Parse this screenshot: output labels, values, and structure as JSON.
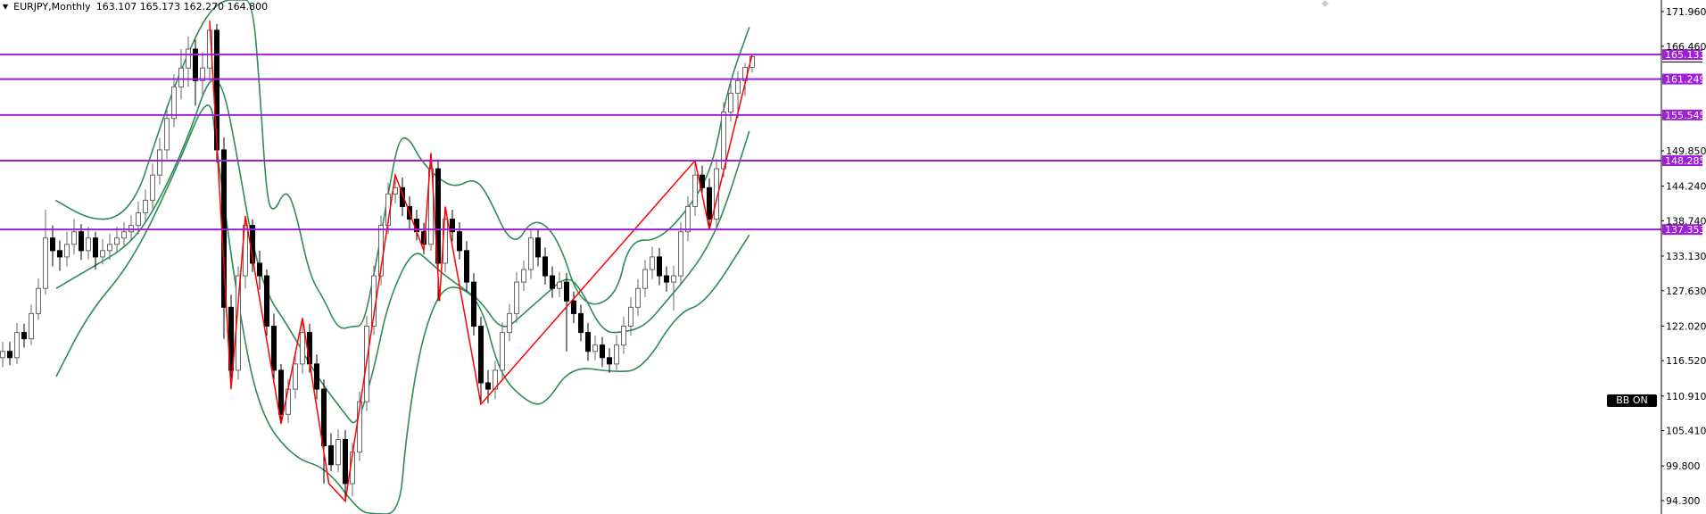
{
  "header": {
    "symbol": "EURJPY,Monthly",
    "ohlc_text": "163.107 165.173 162.270 164.800",
    "menu_icon": "triangle-down-icon"
  },
  "bb_button": {
    "label": "BB ON"
  },
  "colors": {
    "bull_body": "#ffffff",
    "bear_body": "#000000",
    "candle_outline": "#555555",
    "bands": "#2e8b57",
    "zigzag": "#ff0000",
    "levels": "#9d1fd6",
    "axis": "#000000"
  },
  "chart_data": {
    "type": "candlestick",
    "title": "EURJPY,Monthly",
    "ylim": [
      93.5,
      173.8
    ],
    "yticks": [
      "171.960",
      "166.460",
      "149.850",
      "144.240",
      "138.740",
      "133.130",
      "127.630",
      "122.020",
      "116.520",
      "110.910",
      "105.410",
      "99.800",
      "94.300"
    ],
    "ytick_values": [
      171.96,
      166.46,
      149.85,
      144.24,
      138.74,
      133.13,
      127.63,
      122.02,
      116.52,
      110.91,
      105.41,
      99.8,
      94.3
    ],
    "ohlc": [
      [
        117,
        119.5,
        115.5,
        118
      ],
      [
        118,
        119.5,
        115.8,
        117
      ],
      [
        117,
        122.5,
        116,
        121
      ],
      [
        121,
        122.4,
        118.6,
        120
      ],
      [
        120,
        125.4,
        119,
        124
      ],
      [
        124,
        129.6,
        123,
        128
      ],
      [
        128,
        140.5,
        127,
        136
      ],
      [
        136,
        138,
        131.5,
        134
      ],
      [
        134,
        135.6,
        130.8,
        133
      ],
      [
        133,
        137,
        131.5,
        135
      ],
      [
        135,
        139,
        133.4,
        137
      ],
      [
        137,
        138.2,
        132.5,
        134
      ],
      [
        134,
        137.8,
        132.6,
        136
      ],
      [
        136,
        137,
        131,
        133
      ],
      [
        133,
        135.8,
        131.8,
        134
      ],
      [
        134,
        136.7,
        132.5,
        135
      ],
      [
        135,
        137.8,
        133.6,
        136
      ],
      [
        136,
        138.5,
        134.7,
        137
      ],
      [
        137,
        139.6,
        135.5,
        138
      ],
      [
        138,
        141.8,
        136.6,
        140
      ],
      [
        140,
        143.7,
        138.5,
        142
      ],
      [
        142,
        147.8,
        140.7,
        146
      ],
      [
        146,
        151.9,
        144.5,
        150
      ],
      [
        150,
        157,
        148.5,
        155
      ],
      [
        155,
        162,
        153.6,
        160
      ],
      [
        160,
        166,
        158,
        163
      ],
      [
        163,
        168,
        160,
        166
      ],
      [
        166,
        167.5,
        157,
        161
      ],
      [
        161,
        165.5,
        158.6,
        163
      ],
      [
        163,
        170.5,
        161,
        169
      ],
      [
        169,
        170,
        148,
        150
      ],
      [
        150,
        152,
        120,
        125
      ],
      [
        125,
        127,
        112,
        115
      ],
      [
        115,
        131.5,
        113.5,
        130
      ],
      [
        130,
        139.5,
        128,
        138
      ],
      [
        138,
        139,
        130.6,
        132
      ],
      [
        132,
        134,
        127.8,
        130
      ],
      [
        130,
        131,
        120.5,
        122
      ],
      [
        122,
        124,
        113.5,
        115
      ],
      [
        115,
        116,
        106.5,
        108
      ],
      [
        108,
        113.6,
        106.6,
        112
      ],
      [
        112,
        117.6,
        110.5,
        116
      ],
      [
        116,
        123.3,
        114.5,
        121
      ],
      [
        121,
        122.4,
        114.6,
        116
      ],
      [
        116,
        117.5,
        110.4,
        112
      ],
      [
        112,
        113.5,
        97,
        103
      ],
      [
        103,
        105,
        99,
        100
      ],
      [
        100,
        105.6,
        98.8,
        104
      ],
      [
        104,
        105.5,
        94.2,
        97
      ],
      [
        97,
        103.5,
        95,
        102
      ],
      [
        102,
        111.6,
        100.6,
        110
      ],
      [
        110,
        123.6,
        108.5,
        122
      ],
      [
        122,
        131.6,
        120.6,
        130
      ],
      [
        130,
        139.6,
        128.5,
        138
      ],
      [
        138,
        144.8,
        136.6,
        143
      ],
      [
        143,
        146,
        141.5,
        144
      ],
      [
        144,
        145.6,
        139.5,
        141
      ],
      [
        141,
        142.6,
        137.5,
        139
      ],
      [
        139,
        140.5,
        135.6,
        137
      ],
      [
        137,
        138.4,
        133.4,
        135
      ],
      [
        135,
        149.5,
        134,
        147
      ],
      [
        147,
        148.5,
        126,
        132
      ],
      [
        132,
        141,
        130.5,
        139
      ],
      [
        139,
        140.5,
        135.5,
        137
      ],
      [
        137,
        138.5,
        132.6,
        134
      ],
      [
        134,
        135.5,
        127.5,
        129
      ],
      [
        129,
        130.4,
        120.5,
        122
      ],
      [
        122,
        123.5,
        109.6,
        113
      ],
      [
        113,
        115,
        109.8,
        112
      ],
      [
        112,
        116.5,
        110.4,
        115
      ],
      [
        115,
        122.6,
        113.6,
        121
      ],
      [
        121,
        125.5,
        119.6,
        124
      ],
      [
        124,
        130.6,
        122.5,
        129
      ],
      [
        129,
        132.4,
        127.6,
        131
      ],
      [
        131,
        137.5,
        129.5,
        136
      ],
      [
        136,
        137.4,
        131.5,
        133
      ],
      [
        133,
        134.5,
        128.6,
        130
      ],
      [
        130,
        131.5,
        126.5,
        128
      ],
      [
        128,
        130.6,
        126.6,
        129
      ],
      [
        129,
        130.4,
        118,
        126
      ],
      [
        126,
        127.5,
        122.5,
        124
      ],
      [
        124,
        125.4,
        119.6,
        121
      ],
      [
        121,
        122.5,
        116.5,
        118
      ],
      [
        118,
        120.5,
        116.6,
        119
      ],
      [
        119,
        120.3,
        115.5,
        117
      ],
      [
        117,
        118.5,
        114.6,
        116
      ],
      [
        116,
        120.6,
        115,
        119
      ],
      [
        119,
        123.5,
        117.6,
        122
      ],
      [
        122,
        126.6,
        120.5,
        125
      ],
      [
        125,
        129.5,
        123.6,
        128
      ],
      [
        128,
        132.5,
        126.6,
        131
      ],
      [
        131,
        134.6,
        129.5,
        133
      ],
      [
        133,
        134.4,
        128.5,
        130
      ],
      [
        130,
        131.5,
        127.5,
        129
      ],
      [
        129,
        131.6,
        124.5,
        130
      ],
      [
        130,
        138.5,
        128.6,
        137
      ],
      [
        137,
        142.6,
        135.5,
        141
      ],
      [
        141,
        148.3,
        139.5,
        146
      ],
      [
        146,
        147.5,
        142.5,
        144
      ],
      [
        144,
        145.5,
        137.4,
        139
      ],
      [
        139,
        148.6,
        137.6,
        147
      ],
      [
        147,
        157.6,
        145.6,
        156
      ],
      [
        156,
        160.5,
        154.5,
        159
      ],
      [
        159,
        162.5,
        155,
        161
      ],
      [
        161,
        163.8,
        158.6,
        163.107
      ],
      [
        163.107,
        165.173,
        162.27,
        164.8
      ]
    ],
    "bollinger_upper": [
      [
        7.4,
        142
      ],
      [
        12,
        139
      ],
      [
        16,
        139
      ],
      [
        19,
        143
      ],
      [
        21,
        150
      ],
      [
        24,
        160
      ],
      [
        27,
        168
      ],
      [
        29,
        172
      ],
      [
        31,
        176
      ],
      [
        33,
        180
      ],
      [
        35,
        175
      ],
      [
        36,
        160
      ],
      [
        37,
        142
      ],
      [
        38,
        140
      ],
      [
        39.6,
        143.8
      ],
      [
        40.9,
        141
      ],
      [
        43,
        130
      ],
      [
        45,
        126.3
      ],
      [
        47,
        121.4
      ],
      [
        49,
        122
      ],
      [
        50.5,
        122
      ],
      [
        52,
        130
      ],
      [
        54,
        143
      ],
      [
        55.5,
        152
      ],
      [
        57,
        151.8
      ],
      [
        58.4,
        148.6
      ],
      [
        60.9,
        145.5
      ],
      [
        63.4,
        144
      ],
      [
        66,
        145.5
      ],
      [
        67.8,
        143.3
      ],
      [
        71.5,
        134.1
      ],
      [
        74.4,
        139.5
      ],
      [
        77.8,
        136.2
      ],
      [
        81,
        124.9
      ],
      [
        85.9,
        126.3
      ],
      [
        87.8,
        135.8
      ],
      [
        92,
        135.5
      ],
      [
        97,
        142
      ],
      [
        99.6,
        148
      ],
      [
        101.5,
        159.6
      ],
      [
        104.6,
        169.5
      ]
    ],
    "bollinger_middle": [
      [
        7.5,
        128
      ],
      [
        12,
        131
      ],
      [
        18,
        135
      ],
      [
        22,
        142
      ],
      [
        26,
        152
      ],
      [
        29,
        162
      ],
      [
        31,
        160
      ],
      [
        33,
        148
      ],
      [
        35,
        135
      ],
      [
        37,
        127
      ],
      [
        40,
        122
      ],
      [
        44,
        114
      ],
      [
        48,
        108
      ],
      [
        49.6,
        105.8
      ],
      [
        52,
        115
      ],
      [
        54,
        126
      ],
      [
        57.5,
        134.5
      ],
      [
        60,
        132
      ],
      [
        62,
        130
      ],
      [
        64.5,
        128
      ],
      [
        67,
        126
      ],
      [
        70,
        121
      ],
      [
        73,
        124
      ],
      [
        76,
        127
      ],
      [
        79,
        130
      ],
      [
        81,
        128
      ],
      [
        84,
        121
      ],
      [
        87,
        121
      ],
      [
        90,
        122
      ],
      [
        93,
        126
      ],
      [
        96,
        130
      ],
      [
        98.5,
        134
      ],
      [
        101,
        140
      ],
      [
        104.6,
        153
      ]
    ],
    "bollinger_lower": [
      [
        7.5,
        114
      ],
      [
        12,
        124
      ],
      [
        18,
        132
      ],
      [
        24,
        146
      ],
      [
        29,
        160
      ],
      [
        30,
        150
      ],
      [
        33,
        125
      ],
      [
        36,
        108
      ],
      [
        40.8,
        101
      ],
      [
        45.4,
        99.5
      ],
      [
        49.9,
        92.6
      ],
      [
        52,
        85
      ],
      [
        55.6,
        85
      ],
      [
        56.5,
        104.4
      ],
      [
        58.4,
        118.5
      ],
      [
        60.9,
        127
      ],
      [
        63.4,
        128.7
      ],
      [
        67,
        125.9
      ],
      [
        69.6,
        114.3
      ],
      [
        73.4,
        110
      ],
      [
        75.9,
        109.3
      ],
      [
        79.6,
        115.7
      ],
      [
        85.5,
        114.7
      ],
      [
        89.6,
        115
      ],
      [
        94.6,
        124.2
      ],
      [
        98.5,
        125.6
      ],
      [
        104.6,
        136.5
      ]
    ],
    "zigzag": [
      [
        29,
        170.5
      ],
      [
        32,
        112
      ],
      [
        34,
        139.5
      ],
      [
        39,
        106.5
      ],
      [
        42,
        123.3
      ],
      [
        45.7,
        97
      ],
      [
        48,
        94.2
      ],
      [
        55,
        146
      ],
      [
        59,
        134
      ],
      [
        60,
        149.5
      ],
      [
        61.2,
        126
      ],
      [
        62,
        141
      ],
      [
        67,
        109.6
      ],
      [
        97,
        148.3
      ],
      [
        99,
        137.4
      ],
      [
        105,
        165.17
      ]
    ],
    "levels": [
      {
        "value": 165.133,
        "label": "165.133"
      },
      {
        "value": 161.249,
        "label": "161.249"
      },
      {
        "value": 155.545,
        "label": "155.545"
      },
      {
        "value": 148.285,
        "label": "148.285"
      },
      {
        "value": 137.353,
        "label": "137.353"
      }
    ]
  }
}
